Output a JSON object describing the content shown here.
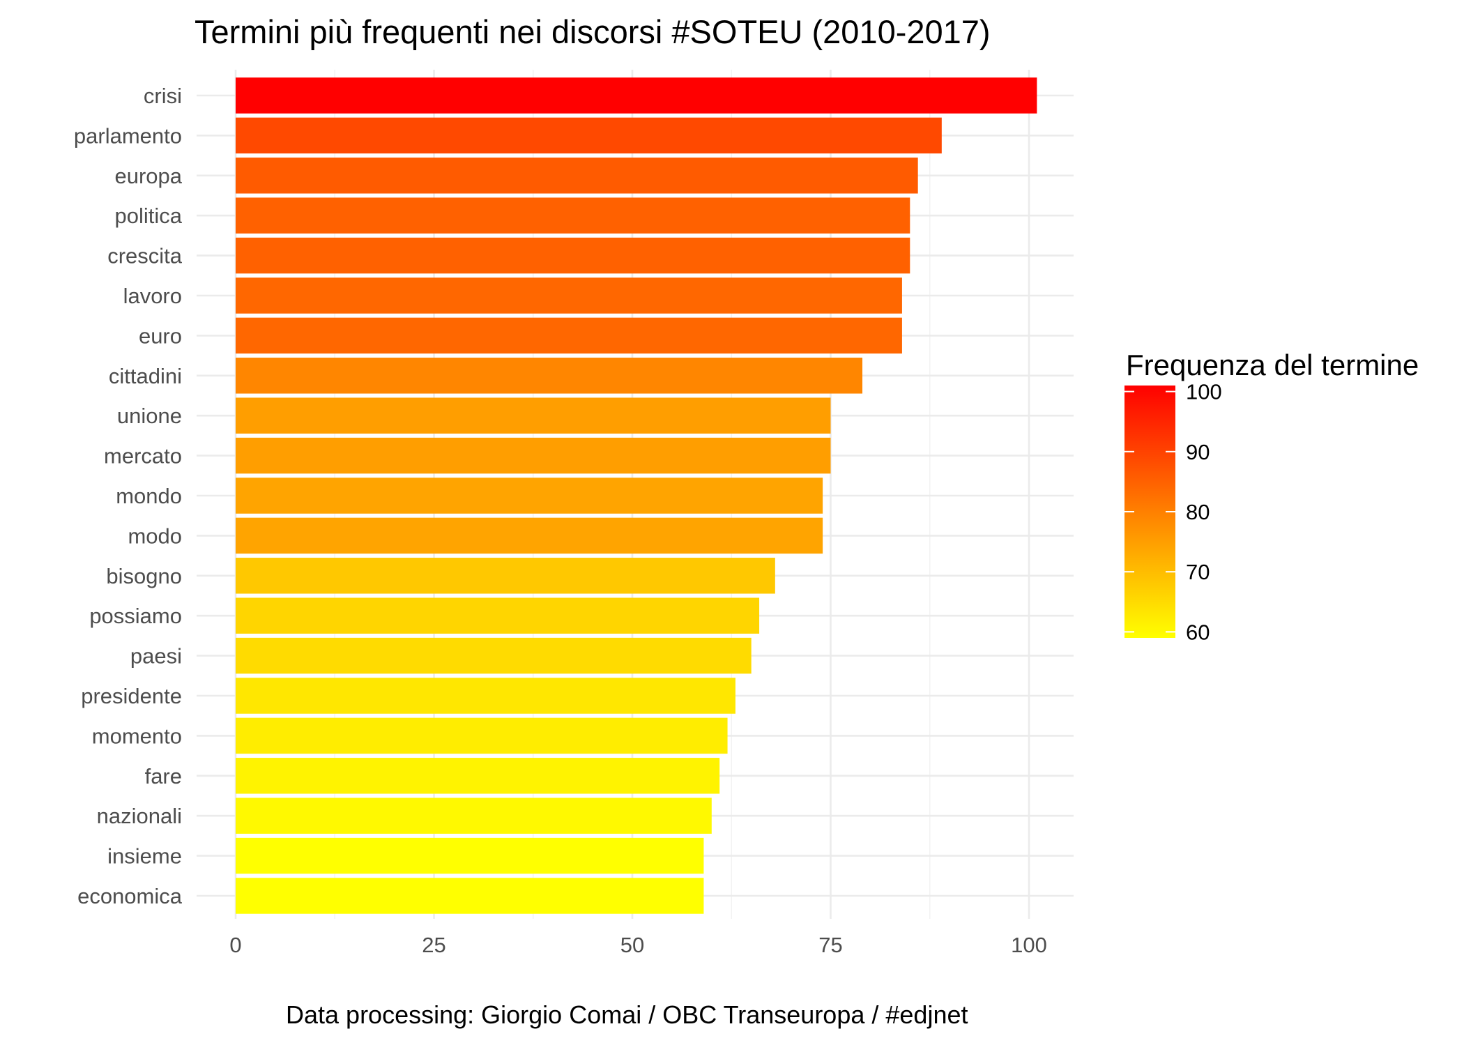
{
  "chart_data": {
    "type": "bar",
    "orientation": "horizontal",
    "title": "Termini più frequenti nei discorsi #SOTEU (2010-2017)",
    "caption": "Data processing:  Giorgio Comai / OBC Transeuropa / #edjnet",
    "xlabel": "",
    "ylabel": "",
    "categories": [
      "crisi",
      "parlamento",
      "europa",
      "politica",
      "crescita",
      "lavoro",
      "euro",
      "cittadini",
      "unione",
      "mercato",
      "mondo",
      "modo",
      "bisogno",
      "possiamo",
      "paesi",
      "presidente",
      "momento",
      "fare",
      "nazionali",
      "insieme",
      "economica"
    ],
    "values": [
      101,
      89,
      86,
      85,
      85,
      84,
      84,
      79,
      75,
      75,
      74,
      74,
      68,
      66,
      65,
      63,
      62,
      61,
      60,
      59,
      59
    ],
    "xlim": [
      -5,
      106
    ],
    "xticks": [
      "0",
      "25",
      "50",
      "75",
      "100"
    ],
    "xtick_values": [
      0,
      25,
      50,
      75,
      100
    ],
    "grid": true,
    "legend": {
      "title": "Frequenza del termine",
      "position": "right",
      "type": "colorbar",
      "low_color": "#FFFF00",
      "high_color": "#FF0000",
      "range": [
        59,
        101
      ],
      "ticks": [
        "100",
        "90",
        "80",
        "70",
        "60"
      ],
      "tick_values": [
        100,
        90,
        80,
        70,
        60
      ]
    }
  }
}
